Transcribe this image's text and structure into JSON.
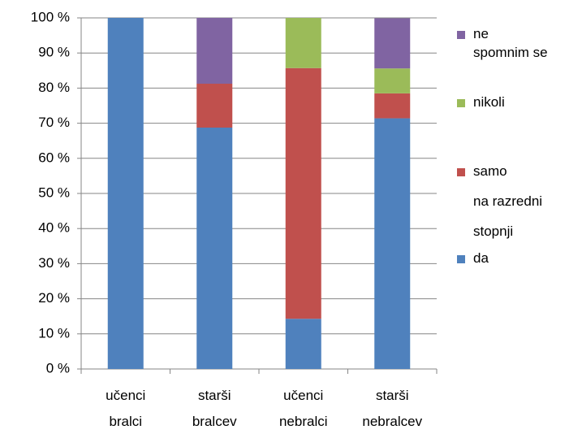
{
  "chart_data": {
    "type": "stacked_bar",
    "categories": [
      "učenci bralci",
      "starši bralcev",
      "učenci nebralci",
      "starši nebralcev"
    ],
    "series": [
      {
        "name": "da",
        "color": "#4f81bd",
        "values": [
          100,
          68.75,
          14.3,
          71.4
        ]
      },
      {
        "name": "samo na razredni stopnji",
        "color": "#c0504d",
        "values": [
          0,
          12.5,
          71.4,
          7.1
        ]
      },
      {
        "name": "nikoli",
        "color": "#9bbb59",
        "values": [
          0,
          0,
          14.3,
          7.1
        ]
      },
      {
        "name": "ne spomnim se",
        "color": "#8064a2",
        "values": [
          0,
          18.75,
          0,
          14.3
        ]
      }
    ],
    "ylim": [
      0,
      100
    ],
    "yticks": [
      {
        "value": 0,
        "label": "0 %"
      },
      {
        "value": 10,
        "label": "10 %"
      },
      {
        "value": 20,
        "label": "20 %"
      },
      {
        "value": 30,
        "label": "30 %"
      },
      {
        "value": 40,
        "label": "40 %"
      },
      {
        "value": 50,
        "label": "50 %"
      },
      {
        "value": 60,
        "label": "60 %"
      },
      {
        "value": 70,
        "label": "70 %"
      },
      {
        "value": 80,
        "label": "80 %"
      },
      {
        "value": 90,
        "label": "90 %"
      },
      {
        "value": 100,
        "label": "100 %"
      }
    ],
    "grid": true,
    "legend": "right"
  }
}
